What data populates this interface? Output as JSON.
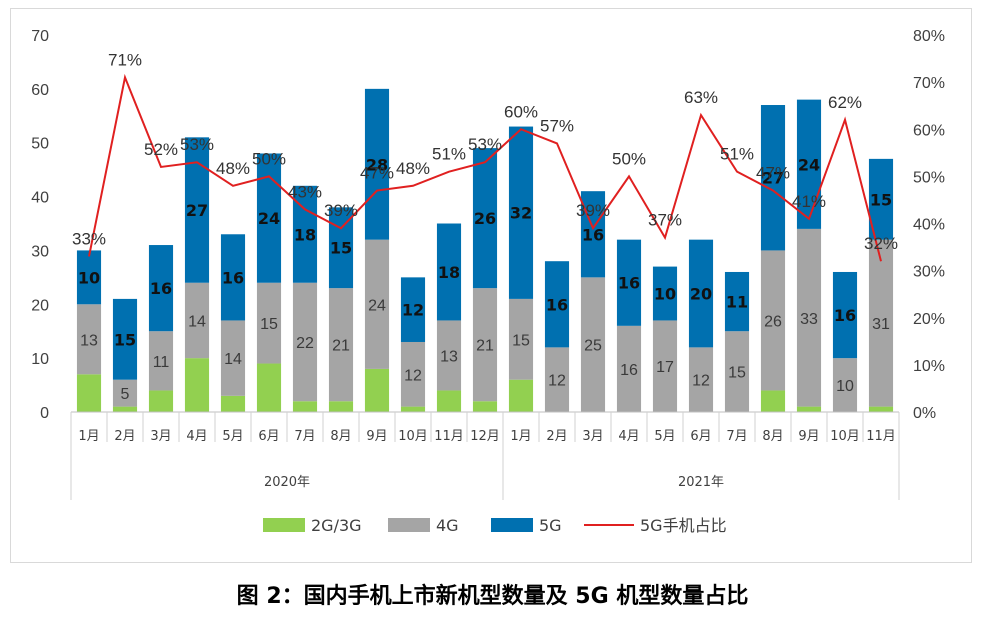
{
  "chart_data": {
    "type": "bar",
    "stacked": true,
    "categories": [
      "1月",
      "2月",
      "3月",
      "4月",
      "5月",
      "6月",
      "7月",
      "8月",
      "9月",
      "10月",
      "11月",
      "12月",
      "1月",
      "2月",
      "3月",
      "4月",
      "5月",
      "6月",
      "7月",
      "8月",
      "9月",
      "10月",
      "11月"
    ],
    "groups": [
      {
        "label": "2020年",
        "count": 12
      },
      {
        "label": "2021年",
        "count": 11
      }
    ],
    "series": [
      {
        "name": "2G/3G",
        "type": "bar",
        "color": "#92d050",
        "values": [
          7,
          1,
          4,
          10,
          3,
          9,
          2,
          2,
          8,
          1,
          4,
          2,
          6,
          0,
          0,
          0,
          0,
          0,
          0,
          4,
          1,
          0,
          1
        ]
      },
      {
        "name": "4G",
        "type": "bar",
        "color": "#a5a5a5",
        "values": [
          13,
          5,
          11,
          14,
          14,
          15,
          22,
          21,
          24,
          12,
          13,
          21,
          15,
          12,
          25,
          16,
          17,
          12,
          15,
          26,
          33,
          10,
          31
        ]
      },
      {
        "name": "5G",
        "type": "bar",
        "color": "#0070b0",
        "values": [
          10,
          15,
          16,
          27,
          16,
          24,
          18,
          15,
          28,
          12,
          18,
          26,
          32,
          16,
          16,
          16,
          10,
          20,
          11,
          27,
          24,
          16,
          15
        ]
      },
      {
        "name": "5G手机占比",
        "type": "line",
        "axis": "right",
        "color": "#e02020",
        "values": [
          33,
          71,
          52,
          53,
          48,
          50,
          43,
          39,
          47,
          48,
          51,
          53,
          60,
          57,
          39,
          50,
          37,
          63,
          51,
          47,
          41,
          62,
          32
        ],
        "labels": [
          "33%",
          "71%",
          "52%",
          "53%",
          "48%",
          "50%",
          "43%",
          "39%",
          "47%",
          "48%",
          "51%",
          "53%",
          "60%",
          "57%",
          "39%",
          "50%",
          "37%",
          "63%",
          "51%",
          "47%",
          "41%",
          "62%",
          "32%"
        ]
      }
    ],
    "bar_labels": {
      "4G": [
        "13",
        "5",
        "11",
        "14",
        "14",
        "15",
        "22",
        "21",
        "24",
        "12",
        "13",
        "21",
        "15",
        "12",
        "25",
        "16",
        "17",
        "12",
        "15",
        "26",
        "33",
        "10",
        "31"
      ],
      "5G": [
        "10",
        "15",
        "16",
        "27",
        "16",
        "24",
        "18",
        "15",
        "28",
        "12",
        "18",
        "26",
        "32",
        "16",
        "16",
        "16",
        "10",
        "20",
        "11",
        "27",
        "24",
        "16",
        "15"
      ]
    },
    "ylim": [
      0,
      70
    ],
    "yticks": [
      "0",
      "10",
      "20",
      "30",
      "40",
      "50",
      "60",
      "70"
    ],
    "y2lim": [
      0,
      80
    ],
    "y2ticks": [
      "0%",
      "10%",
      "20%",
      "30%",
      "40%",
      "50%",
      "60%",
      "70%",
      "80%"
    ],
    "legend_position": "bottom",
    "grid": false
  },
  "caption": "图 2：国内手机上市新机型数量及 5G 机型数量占比"
}
